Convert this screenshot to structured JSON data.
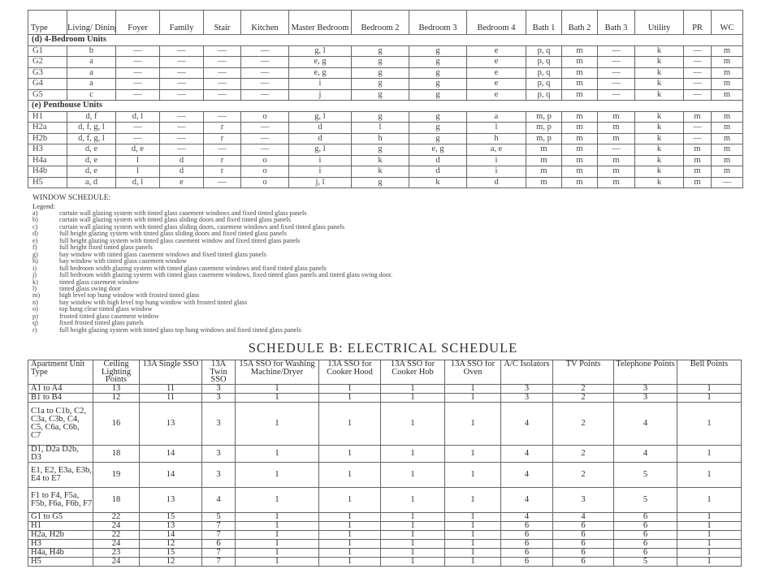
{
  "window_table": {
    "headers": [
      "Type",
      "Living/ Dining",
      "Foyer",
      "Family",
      "Stair",
      "Kitchen",
      "Master Bedroom",
      "Bedroom 2",
      "Bedroom 3",
      "Bedroom 4",
      "Bath 1",
      "Bath 2",
      "Bath 3",
      "Utility",
      "PR",
      "WC"
    ],
    "sections": [
      {
        "title": "(d) 4-Bedroom Units",
        "rows": [
          [
            "G1",
            "b",
            "—",
            "—",
            "—",
            "—",
            "g, l",
            "g",
            "g",
            "e",
            "p, q",
            "m",
            "—",
            "k",
            "—",
            "m"
          ],
          [
            "G2",
            "a",
            "—",
            "—",
            "—",
            "—",
            "e, g",
            "g",
            "g",
            "e",
            "p, q",
            "m",
            "—",
            "k",
            "—",
            "m"
          ],
          [
            "G3",
            "a",
            "—",
            "—",
            "—",
            "—",
            "e, g",
            "g",
            "g",
            "e",
            "p, q",
            "m",
            "—",
            "k",
            "—",
            "m"
          ],
          [
            "G4",
            "a",
            "—",
            "—",
            "—",
            "—",
            "i",
            "g",
            "g",
            "e",
            "p, q",
            "m",
            "—",
            "k",
            "—",
            "m"
          ],
          [
            "G5",
            "c",
            "—",
            "—",
            "—",
            "—",
            "j",
            "g",
            "g",
            "e",
            "p, q",
            "m",
            "—",
            "k",
            "—",
            "m"
          ]
        ]
      },
      {
        "title": "(e) Penthouse Units",
        "rows": [
          [
            "H1",
            "d, f",
            "d, l",
            "—",
            "—",
            "o",
            "g, l",
            "g",
            "g",
            "a",
            "m, p",
            "m",
            "m",
            "k",
            "m",
            "m"
          ],
          [
            "H2a",
            "d, f, g, l",
            "—",
            "—",
            "r",
            "—",
            "d",
            "l",
            "g",
            "l",
            "m, p",
            "m",
            "m",
            "k",
            "—",
            "m"
          ],
          [
            "H2b",
            "d, f, g, l",
            "—",
            "—",
            "r",
            "—",
            "d",
            "h",
            "g",
            "h",
            "m, p",
            "m",
            "m",
            "k",
            "—",
            "m"
          ],
          [
            "H3",
            "d, e",
            "d, e",
            "—",
            "—",
            "—",
            "g, l",
            "g",
            "e, g",
            "a, e",
            "m",
            "m",
            "—",
            "k",
            "m",
            "m"
          ],
          [
            "H4a",
            "d, e",
            "l",
            "d",
            "r",
            "o",
            "i",
            "k",
            "d",
            "i",
            "m",
            "m",
            "m",
            "k",
            "m",
            "m"
          ],
          [
            "H4b",
            "d, e",
            "l",
            "d",
            "r",
            "o",
            "i",
            "k",
            "d",
            "i",
            "m",
            "m",
            "m",
            "k",
            "m",
            "m"
          ],
          [
            "H5",
            "a, d",
            "d, l",
            "e",
            "—",
            "o",
            "j, l",
            "g",
            "k",
            "d",
            "m",
            "m",
            "m",
            "k",
            "m",
            "—"
          ]
        ]
      }
    ]
  },
  "window_schedule": {
    "title": "WINDOW SCHEDULE:",
    "legend_label": "Legend:",
    "items": [
      {
        "key": "a)",
        "text": "curtain wall glazing system with tinted glass casement windows and fixed tinted glass panels"
      },
      {
        "key": "b)",
        "text": "curtain wall glazing system with tinted glass sliding doors and fixed tinted glass panels"
      },
      {
        "key": "c)",
        "text": "curtain wall glazing system with tinted glass sliding doors, casement windows and fixed tinted glass panels"
      },
      {
        "key": "d)",
        "text": "full height glazing system with tinted glass sliding doors and fixed tinted glass panels"
      },
      {
        "key": "e)",
        "text": "full height glazing system with tinted glass casement window and fixed tinted glass panels"
      },
      {
        "key": "f)",
        "text": "full height fixed tinted glass panels"
      },
      {
        "key": "g)",
        "text": "bay window with tinted glass casement windows and fixed tinted glass panels"
      },
      {
        "key": "h)",
        "text": "bay window with tinted glass casement window"
      },
      {
        "key": "i)",
        "text": "full bedroom width glazing system with tinted glass casement windows and fixed tinted glass panels"
      },
      {
        "key": "j)",
        "text": "full bedroom width glazing system with tinted glass casement windows, fixed tinted glass panels and tinted glass swing door."
      },
      {
        "key": "k)",
        "text": "tinted glass casement window"
      },
      {
        "key": "l)",
        "text": "tinted glass swing door"
      },
      {
        "key": "m)",
        "text": "high level top hung window with frosted tinted glass"
      },
      {
        "key": "n)",
        "text": "bay window with high level top hung window with frosted tinted glass"
      },
      {
        "key": "o)",
        "text": "top hung clear tinted glass window"
      },
      {
        "key": "p)",
        "text": "frosted tinted glass casement window"
      },
      {
        "key": "q)",
        "text": "fixed frosted tinted glass panels"
      },
      {
        "key": "r)",
        "text": "full height glazing system with tinted glass top hung windows and fixed tinted glass panels"
      }
    ]
  },
  "electrical_schedule": {
    "title": "SCHEDULE B: ELECTRICAL SCHEDULE",
    "headers": [
      "Apartment Unit Type",
      "Ceiling Lighting Points",
      "13A Single SSO",
      "13A Twin SSO",
      "15A SSO for Washing Machine/Dryer",
      "13A SSO for Cooker Hood",
      "13A SSO for Cooker Hob",
      "13A SSO for Oven",
      "A/C Isolators",
      "TV Points",
      "Telephone Points",
      "Bell Points"
    ],
    "rows": [
      [
        "A1 to A4",
        "13",
        "11",
        "3",
        "1",
        "1",
        "1",
        "1",
        "3",
        "2",
        "3",
        "1"
      ],
      [
        "B1 to B4",
        "12",
        "11",
        "3",
        "1",
        "1",
        "1",
        "1",
        "3",
        "2",
        "3",
        "1"
      ],
      [
        "C1a to C1b, C2, C3a, C3b, C4, C5, C6a, C6b, C7",
        "16",
        "13",
        "3",
        "1",
        "1",
        "1",
        "1",
        "4",
        "2",
        "4",
        "1"
      ],
      [
        "D1, D2a D2b, D3",
        "18",
        "14",
        "3",
        "1",
        "1",
        "1",
        "1",
        "4",
        "2",
        "4",
        "1"
      ],
      [
        "E1, E2, E3a, E3b, E4 to E7",
        "19",
        "14",
        "3",
        "1",
        "1",
        "1",
        "1",
        "4",
        "2",
        "5",
        "1"
      ],
      [
        "F1 to F4, F5a, F5b, F6a, F6b, F7",
        "18",
        "13",
        "4",
        "1",
        "1",
        "1",
        "1",
        "4",
        "3",
        "5",
        "1"
      ],
      [
        "G1 to G5",
        "22",
        "15",
        "5",
        "1",
        "1",
        "1",
        "1",
        "4",
        "4",
        "6",
        "1"
      ],
      [
        "H1",
        "24",
        "13",
        "7",
        "1",
        "1",
        "1",
        "1",
        "6",
        "6",
        "6",
        "1"
      ],
      [
        "H2a, H2b",
        "22",
        "14",
        "7",
        "1",
        "1",
        "1",
        "1",
        "6",
        "6",
        "6",
        "1"
      ],
      [
        "H3",
        "24",
        "12",
        "6",
        "1",
        "1",
        "1",
        "1",
        "6",
        "6",
        "6",
        "1"
      ],
      [
        "H4a, H4b",
        "23",
        "15",
        "7",
        "1",
        "1",
        "1",
        "1",
        "6",
        "6",
        "6",
        "1"
      ],
      [
        "H5",
        "24",
        "12",
        "7",
        "1",
        "1",
        "1",
        "1",
        "6",
        "6",
        "5",
        "1"
      ]
    ]
  }
}
